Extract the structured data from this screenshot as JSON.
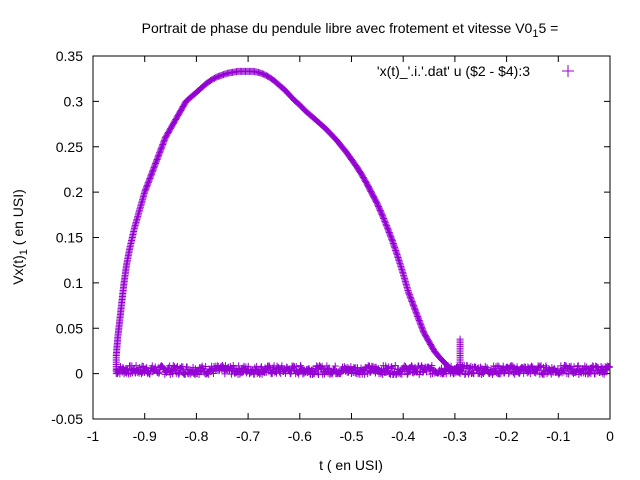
{
  "chart_data": {
    "type": "scatter",
    "title": "Portrait de phase du pendule libre avec frotement et vitesse V0",
    "title_sub": "1",
    "title_tail": "5 =",
    "xlabel": "t ( en USI)",
    "ylabel": "Vx(t)",
    "ylabel_sub": "1",
    "ylabel_tail": " ( en USI)",
    "xlim": [
      -1,
      0
    ],
    "ylim": [
      -0.05,
      0.35
    ],
    "xticks": [
      -1,
      -0.9,
      -0.8,
      -0.7,
      -0.6,
      -0.5,
      -0.4,
      -0.3,
      -0.2,
      -0.1,
      0
    ],
    "xtick_labels": [
      "-1",
      "-0.9",
      "-0.8",
      "-0.7",
      "-0.6",
      "-0.5",
      "-0.4",
      "-0.3",
      "-0.2",
      "-0.1",
      "0"
    ],
    "yticks": [
      -0.05,
      0,
      0.05,
      0.1,
      0.15,
      0.2,
      0.25,
      0.3,
      0.35
    ],
    "ytick_labels": [
      "-0.05",
      "0",
      "0.05",
      "0.1",
      "0.15",
      "0.2",
      "0.25",
      "0.3",
      "0.35"
    ],
    "grid": false,
    "legend": {
      "position": "top-right"
    },
    "marker": "+",
    "series": [
      {
        "name": "'x(t)_'.i.'.dat' u ($2 - $4):3",
        "color": "#9400d3",
        "arc": {
          "x": [
            -0.955,
            -0.952,
            -0.948,
            -0.944,
            -0.94,
            -0.935,
            -0.93,
            -0.92,
            -0.91,
            -0.9,
            -0.89,
            -0.88,
            -0.87,
            -0.86,
            -0.85,
            -0.84,
            -0.83,
            -0.82,
            -0.81,
            -0.8,
            -0.79,
            -0.78,
            -0.77,
            -0.76,
            -0.75,
            -0.74,
            -0.73,
            -0.72,
            -0.71,
            -0.7,
            -0.69,
            -0.68,
            -0.67,
            -0.66,
            -0.65,
            -0.64,
            -0.63,
            -0.62,
            -0.61,
            -0.6,
            -0.59,
            -0.58,
            -0.57,
            -0.56,
            -0.55,
            -0.54,
            -0.53,
            -0.52,
            -0.51,
            -0.5,
            -0.49,
            -0.48,
            -0.47,
            -0.46,
            -0.45,
            -0.44,
            -0.43,
            -0.42,
            -0.41,
            -0.4,
            -0.39,
            -0.38,
            -0.37,
            -0.36,
            -0.35,
            -0.34,
            -0.33,
            -0.32,
            -0.315,
            -0.31,
            -0.305,
            -0.3,
            -0.295,
            -0.292,
            -0.29,
            -0.288
          ],
          "y": [
            0.02,
            0.04,
            0.06,
            0.08,
            0.1,
            0.12,
            0.135,
            0.16,
            0.18,
            0.2,
            0.215,
            0.23,
            0.245,
            0.26,
            0.27,
            0.28,
            0.29,
            0.3,
            0.305,
            0.31,
            0.315,
            0.32,
            0.324,
            0.327,
            0.329,
            0.331,
            0.332,
            0.333,
            0.333,
            0.333,
            0.333,
            0.332,
            0.33,
            0.327,
            0.323,
            0.318,
            0.313,
            0.307,
            0.301,
            0.296,
            0.29,
            0.285,
            0.28,
            0.275,
            0.27,
            0.264,
            0.258,
            0.251,
            0.244,
            0.236,
            0.228,
            0.219,
            0.209,
            0.198,
            0.187,
            0.174,
            0.16,
            0.145,
            0.128,
            0.11,
            0.09,
            0.075,
            0.06,
            0.045,
            0.035,
            0.025,
            0.018,
            0.012,
            0.009,
            0.006,
            0.004,
            0.003,
            0.002,
            0.0015,
            0.001,
            0.0
          ]
        },
        "baseline": {
          "x_range": [
            -0.955,
            0.0
          ],
          "y_center": 0.004,
          "y_amplitude": 0.005
        },
        "drop": {
          "x": -0.955,
          "y_range": [
            0.0,
            0.02
          ]
        },
        "post_drop": {
          "x": -0.29,
          "y_range": [
            0.0,
            0.04
          ]
        }
      }
    ]
  }
}
